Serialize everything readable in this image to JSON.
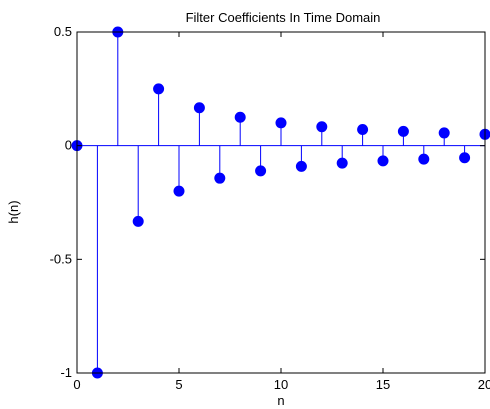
{
  "chart_data": {
    "type": "stem",
    "title": "Filter Coefficients In Time Domain",
    "xlabel": "n",
    "ylabel": "h(n)",
    "xlim": [
      0,
      20
    ],
    "ylim": [
      -1,
      0.5
    ],
    "xticks": [
      0,
      5,
      10,
      15,
      20
    ],
    "xtick_labels": [
      "0",
      "5",
      "10",
      "15",
      "20"
    ],
    "yticks": [
      -1,
      -0.5,
      0,
      0.5
    ],
    "ytick_labels": [
      "-1",
      "-0.5",
      "0",
      "0.5"
    ],
    "grid": false,
    "series": [
      {
        "x": [
          0,
          1,
          2,
          3,
          4,
          5,
          6,
          7,
          8,
          9,
          10,
          11,
          12,
          13,
          14,
          15,
          16,
          17,
          18,
          19,
          20
        ],
        "values": [
          0,
          -1,
          0.5,
          -0.333,
          0.25,
          -0.2,
          0.167,
          -0.143,
          0.125,
          -0.111,
          0.1,
          -0.091,
          0.083,
          -0.077,
          0.071,
          -0.067,
          0.063,
          -0.059,
          0.056,
          -0.053,
          0.05
        ],
        "color": "#0000ff"
      }
    ]
  }
}
